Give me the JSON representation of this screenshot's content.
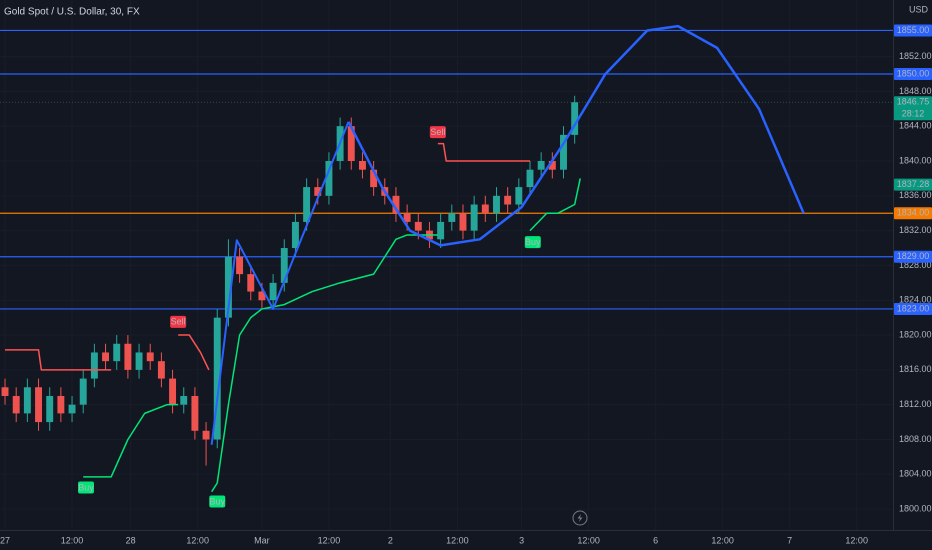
{
  "chart_data": {
    "type": "candlestick",
    "title": "Gold Spot / U.S. Dollar, 30, FX",
    "currency": "USD",
    "up_color": "#26a69a",
    "down_color": "#ef5350",
    "xlim": [
      -1.8,
      318
    ],
    "ylim": [
      1797.6,
      1858.5
    ],
    "xticks": [
      {
        "value": 0,
        "label": "27"
      },
      {
        "value": 24,
        "label": "12:00"
      },
      {
        "value": 45,
        "label": "28"
      },
      {
        "value": 69,
        "label": "12:00"
      },
      {
        "value": 92,
        "label": "Mar"
      },
      {
        "value": 116,
        "label": "12:00"
      },
      {
        "value": 138,
        "label": "2"
      },
      {
        "value": 162,
        "label": "12:00"
      },
      {
        "value": 185,
        "label": "3"
      },
      {
        "value": 209,
        "label": "12:00"
      },
      {
        "value": 233,
        "label": "6"
      },
      {
        "value": 257,
        "label": "12:00"
      },
      {
        "value": 281,
        "label": "7"
      },
      {
        "value": 305,
        "label": "12:00"
      }
    ],
    "yticks": [
      {
        "value": 1800,
        "label": "1800.00"
      },
      {
        "value": 1804,
        "label": "1804.00"
      },
      {
        "value": 1808,
        "label": "1808.00"
      },
      {
        "value": 1812,
        "label": "1812.00"
      },
      {
        "value": 1816,
        "label": "1816.00"
      },
      {
        "value": 1820,
        "label": "1820.00"
      },
      {
        "value": 1824,
        "label": "1824.00"
      },
      {
        "value": 1828,
        "label": "1828.00"
      },
      {
        "value": 1832,
        "label": "1832.00"
      },
      {
        "value": 1836,
        "label": "1836.00"
      },
      {
        "value": 1840,
        "label": "1840.00"
      },
      {
        "value": 1844,
        "label": "1844.00"
      },
      {
        "value": 1848,
        "label": "1848.00"
      },
      {
        "value": 1852,
        "label": "1852.00"
      }
    ],
    "grid": true,
    "x": [
      0,
      4,
      8,
      12,
      16,
      20,
      24,
      28,
      32,
      36,
      40,
      44,
      48,
      52,
      56,
      60,
      64,
      68,
      72,
      76,
      80,
      84,
      88,
      92,
      96,
      100,
      104,
      108,
      112,
      116,
      120,
      124,
      128,
      132,
      136,
      140,
      144,
      148,
      152,
      156,
      160,
      164,
      168,
      172,
      176,
      180,
      184,
      188,
      192,
      196,
      200,
      204
    ],
    "open": [
      1814,
      1813,
      1811,
      1814,
      1810,
      1813,
      1811,
      1812,
      1815,
      1818,
      1817,
      1819,
      1816,
      1818,
      1817,
      1815,
      1812,
      1813,
      1809,
      1808,
      1822,
      1829,
      1827,
      1825,
      1824,
      1826,
      1830,
      1833,
      1837,
      1836,
      1840,
      1844,
      1840,
      1839,
      1837,
      1836,
      1834,
      1833,
      1832,
      1831,
      1833,
      1834,
      1832,
      1835,
      1834,
      1836,
      1835,
      1837,
      1839,
      1840,
      1839,
      1843
    ],
    "high": [
      1815,
      1814,
      1815,
      1815,
      1814,
      1814,
      1813,
      1816,
      1819,
      1819,
      1820,
      1820,
      1819,
      1819,
      1818,
      1816,
      1814,
      1814,
      1810,
      1823,
      1831,
      1830,
      1828,
      1826,
      1827,
      1831,
      1834,
      1838,
      1838,
      1841,
      1845,
      1845,
      1841,
      1840,
      1838,
      1837,
      1835,
      1834,
      1833,
      1834,
      1835,
      1835,
      1836,
      1836,
      1837,
      1837,
      1838,
      1840,
      1841,
      1841,
      1844,
      1847.5
    ],
    "low": [
      1812,
      1810,
      1810,
      1809,
      1809,
      1810,
      1810,
      1811,
      1814,
      1816,
      1816,
      1815,
      1815,
      1816,
      1814,
      1811,
      1811,
      1808,
      1805,
      1807,
      1821,
      1826,
      1824,
      1823,
      1823,
      1825,
      1829,
      1832,
      1835,
      1835,
      1839,
      1839,
      1838,
      1836,
      1835,
      1833,
      1832,
      1831,
      1830,
      1830,
      1832,
      1831,
      1831,
      1833,
      1833,
      1834,
      1834,
      1836,
      1838,
      1838,
      1838,
      1842
    ],
    "close": [
      1813,
      1811,
      1814,
      1810,
      1813,
      1811,
      1812,
      1815,
      1818,
      1817,
      1819,
      1816,
      1818,
      1817,
      1815,
      1812,
      1813,
      1809,
      1808,
      1822,
      1829,
      1827,
      1825,
      1824,
      1826,
      1830,
      1833,
      1837,
      1836,
      1840,
      1844,
      1840,
      1839,
      1837,
      1836,
      1834,
      1833,
      1832,
      1831,
      1833,
      1834,
      1832,
      1835,
      1834,
      1836,
      1835,
      1837,
      1839,
      1840,
      1839,
      1843,
      1846.75
    ],
    "lines": [
      {
        "color": "#ff5252",
        "width": 1.5,
        "x": [
          0,
          12,
          13,
          38,
          39,
          62,
          66,
          70,
          73,
          74,
          155,
          157,
          158,
          188
        ],
        "values": [
          1818.3,
          1818.3,
          1816,
          1816,
          null,
          1820,
          1820,
          1818,
          1816,
          null,
          1842,
          1842,
          1840,
          1840
        ]
      },
      {
        "color": "#00e676",
        "width": 1.5,
        "x": [
          28,
          38,
          44,
          50,
          58,
          62,
          63,
          74,
          76,
          80,
          84,
          86,
          88,
          92,
          100,
          110,
          120,
          132,
          136,
          140,
          144,
          155,
          156,
          188,
          194,
          198,
          204,
          206
        ],
        "values": [
          1803.7,
          1803.7,
          1808,
          1811,
          1812,
          1812,
          null,
          1802,
          1803,
          1812,
          1820,
          1821,
          1822,
          1823,
          1823.5,
          1825,
          1826,
          1827,
          1829,
          1831,
          1831.5,
          1831.5,
          null,
          1832,
          1834,
          1834,
          1835,
          1838
        ]
      },
      {
        "color": "#2962ff",
        "width": 2,
        "x": [
          74,
          83,
          96,
          123
        ],
        "values": [
          1807.4,
          1830.9,
          1823,
          1844.5
        ]
      },
      {
        "color": "#2962ff",
        "width": 2.5,
        "x": [
          123,
          135,
          145,
          156,
          170,
          185,
          200,
          215,
          230,
          241,
          255,
          270,
          286
        ],
        "values": [
          1844.5,
          1837,
          1832,
          1830.3,
          1831,
          1834.7,
          1842,
          1850,
          1855,
          1855.5,
          1853,
          1846,
          1834
        ]
      }
    ],
    "signals": [
      {
        "label": "Sell",
        "x": 62,
        "price": 1820.6,
        "color": "#f23645"
      },
      {
        "label": "Sell",
        "x": 155,
        "price": 1842.4,
        "color": "#f23645"
      },
      {
        "label": "Buy",
        "x": 29,
        "price": 1803.4,
        "color": "#00e676"
      },
      {
        "label": "Buy",
        "x": 76,
        "price": 1801.8,
        "color": "#00e676"
      },
      {
        "label": "Buy",
        "x": 189,
        "price": 1831.6,
        "color": "#00e676"
      }
    ],
    "levels": [
      {
        "price": 1855,
        "label": "1855.00",
        "color": "#2962ff"
      },
      {
        "price": 1850,
        "label": "1850.00",
        "color": "#2962ff"
      },
      {
        "price": 1834,
        "label": "1834.00",
        "color": "#f57c00"
      },
      {
        "price": 1829,
        "label": "1829.00",
        "color": "#2962ff"
      },
      {
        "price": 1823,
        "label": "1823.00",
        "color": "#2962ff"
      }
    ],
    "last_price": {
      "price": 1846.75,
      "label": "1846.75",
      "countdown": "28:12",
      "color": "#089981"
    },
    "indicator_price": {
      "price": 1837.28,
      "label": "1837.28",
      "color": "#089981"
    }
  }
}
